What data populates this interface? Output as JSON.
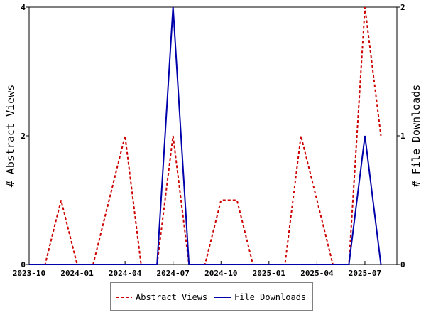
{
  "chart_data": {
    "type": "line",
    "x": [
      "2023-10",
      "2023-11",
      "2023-12",
      "2024-01",
      "2024-02",
      "2024-03",
      "2024-04",
      "2024-05",
      "2024-06",
      "2024-07",
      "2024-08",
      "2024-09",
      "2024-10",
      "2024-11",
      "2024-12",
      "2025-01",
      "2025-02",
      "2025-03",
      "2025-04",
      "2025-05",
      "2025-06",
      "2025-07",
      "2025-08"
    ],
    "series": [
      {
        "name": "Abstract Views",
        "axis": "left",
        "color": "#cc0000",
        "dash": "dashed",
        "values": [
          0,
          0,
          1,
          0,
          0,
          1,
          2,
          0,
          0,
          2,
          0,
          0,
          1,
          1,
          0,
          0,
          0,
          2,
          1,
          0,
          0,
          4,
          2
        ]
      },
      {
        "name": "File Downloads",
        "axis": "right",
        "color": "#0000aa",
        "dash": "solid",
        "values": [
          0,
          0,
          0,
          0,
          0,
          0,
          0,
          0,
          0,
          2,
          0,
          0,
          0,
          0,
          0,
          0,
          0,
          0,
          0,
          0,
          0,
          1,
          0
        ]
      }
    ],
    "xticks": [
      "2023-10",
      "2024-01",
      "2024-04",
      "2024-07",
      "2024-10",
      "2025-01",
      "2025-04",
      "2025-07"
    ],
    "ylabel": "# Abstract Views",
    "y2label": "# File Downloads",
    "ylim": [
      0,
      4
    ],
    "y2lim": [
      0,
      2
    ],
    "yticks": [
      "0",
      "2",
      "4"
    ],
    "y2ticks": [
      "0",
      "1",
      "2"
    ],
    "grid": false,
    "legend_position": "bottom"
  }
}
